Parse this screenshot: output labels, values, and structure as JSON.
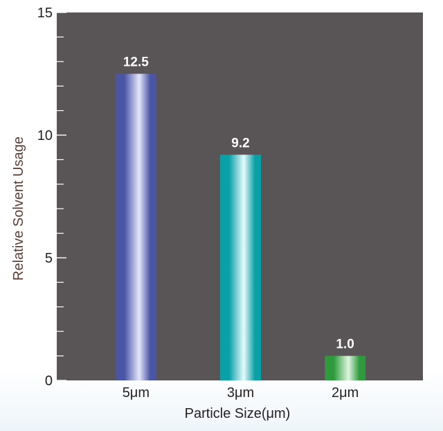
{
  "chart_data": {
    "type": "bar",
    "categories": [
      "5μm",
      "3μm",
      "2μm"
    ],
    "values": [
      12.5,
      9.2,
      1.0
    ],
    "value_labels": [
      "12.5",
      "9.2",
      "1.0"
    ],
    "xlabel": "Particle Size(μm)",
    "ylabel": "Relative Solvent Usage",
    "ylim": [
      0,
      15
    ],
    "yticks": [
      0,
      5,
      10,
      15
    ],
    "ytick_labels": [
      "0",
      "5",
      "10",
      "15"
    ],
    "minor_tick_step": 1,
    "grid": false,
    "plot_background": "#595556",
    "bar_colors": [
      {
        "dark": "#4a55a8",
        "light": "#e4e7fa"
      },
      {
        "dark": "#0aa0a8",
        "light": "#e6fbfb"
      },
      {
        "dark": "#2e9a3c",
        "light": "#dff5df"
      }
    ]
  }
}
